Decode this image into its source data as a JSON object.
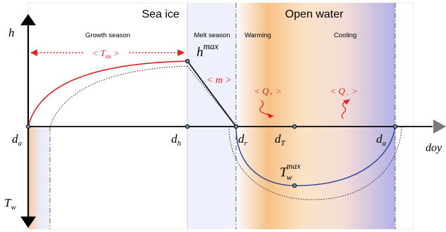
{
  "regions": {
    "sea_ice": "Sea ice",
    "open_water": "Open water",
    "growth_season": "Growth season",
    "melt_season": "Melt season",
    "warming": "Warming",
    "cooling": "Cooling"
  },
  "axes": {
    "h": "h",
    "tw": "T",
    "tw_sub": "w",
    "doy": "doy"
  },
  "points": {
    "da_left": "d",
    "da_left_sub": "a",
    "dh": "d",
    "dh_sub": "h",
    "dr": "d",
    "dr_sub": "r",
    "dt": "d",
    "dt_sub": "T",
    "da_right": "d",
    "da_right_sub": "a"
  },
  "annotations": {
    "hmax": "h",
    "hmax_sup": "max",
    "twmax": "T",
    "twmax_sub": "w",
    "twmax_sup": "max",
    "tsu_open": "< T",
    "tsu_sub": "su",
    "tsu_close": " >",
    "m": "< m >",
    "qplus_open": "< Q",
    "qplus_sub": "+",
    "qplus_close": " >",
    "qminus_open": "< Q",
    "qminus_sub": "−",
    "qminus_close": " >"
  },
  "colors": {
    "ice_curve": "#e02020",
    "water_curve": "#2a3f9a",
    "annotation_red": "#e02020",
    "melt_band": "#e8eaf6",
    "warm_band": "#f5c58a",
    "cool_band": "#b8b6e6",
    "axis": "#000000"
  }
}
